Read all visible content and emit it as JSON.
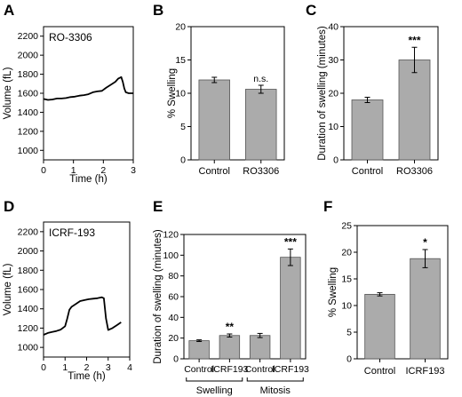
{
  "colors": {
    "bar": "#ababab",
    "bar_stroke": "#555555",
    "line": "#000000"
  },
  "chart_data": [
    {
      "id": "A",
      "panel_letter": "A",
      "type": "line",
      "inset_label": "RO-3306",
      "xlabel": "Time (h)",
      "ylabel": "Volume (fL)",
      "xlim": [
        0,
        3
      ],
      "ylim": [
        900,
        2300
      ],
      "xticks": [
        0,
        1,
        2,
        3
      ],
      "yticks": [
        1000,
        1200,
        1400,
        1600,
        1800,
        2000,
        2200
      ],
      "series": [
        {
          "x": [
            0,
            0.15,
            0.3,
            0.45,
            0.6,
            0.75,
            0.9,
            1.05,
            1.2,
            1.35,
            1.5,
            1.65,
            1.8,
            1.95,
            2.1,
            2.25,
            2.4,
            2.5,
            2.6,
            2.65,
            2.7,
            2.75,
            2.85,
            3.0
          ],
          "y": [
            1540,
            1530,
            1535,
            1545,
            1545,
            1550,
            1560,
            1565,
            1575,
            1580,
            1590,
            1610,
            1620,
            1625,
            1660,
            1690,
            1720,
            1755,
            1770,
            1720,
            1650,
            1610,
            1600,
            1600
          ]
        }
      ]
    },
    {
      "id": "B",
      "panel_letter": "B",
      "type": "bar",
      "ylabel": "% Swelling",
      "ylim": [
        0,
        20
      ],
      "yticks": [
        0,
        5,
        10,
        15,
        20
      ],
      "categories": [
        "Control",
        "RO3306"
      ],
      "values": [
        12.0,
        10.6
      ],
      "errors": [
        0.4,
        0.6
      ],
      "annotations": [
        "",
        "n.s."
      ]
    },
    {
      "id": "C",
      "panel_letter": "C",
      "type": "bar",
      "ylabel": "Duration of swelling (minutes)",
      "ylim": [
        0,
        40
      ],
      "yticks": [
        0,
        10,
        20,
        30,
        40
      ],
      "categories": [
        "Control",
        "RO3306"
      ],
      "values": [
        18.0,
        30.0
      ],
      "errors": [
        0.8,
        3.8
      ],
      "annotations": [
        "",
        "***"
      ]
    },
    {
      "id": "D",
      "panel_letter": "D",
      "type": "line",
      "inset_label": "ICRF-193",
      "xlabel": "Time (h)",
      "ylabel": "Volume (fL)",
      "xlim": [
        0,
        4
      ],
      "ylim": [
        900,
        2300
      ],
      "xticks": [
        0,
        1,
        2,
        3,
        4
      ],
      "yticks": [
        1000,
        1200,
        1400,
        1600,
        1800,
        2000,
        2200
      ],
      "series": [
        {
          "x": [
            0,
            0.2,
            0.4,
            0.6,
            0.8,
            1.0,
            1.1,
            1.2,
            1.3,
            1.5,
            1.7,
            1.9,
            2.1,
            2.3,
            2.5,
            2.7,
            2.8,
            2.9,
            3.0,
            3.2,
            3.4,
            3.6
          ],
          "y": [
            1130,
            1150,
            1160,
            1170,
            1185,
            1220,
            1300,
            1390,
            1420,
            1450,
            1480,
            1490,
            1500,
            1505,
            1510,
            1520,
            1510,
            1300,
            1180,
            1200,
            1230,
            1260
          ]
        }
      ]
    },
    {
      "id": "E",
      "panel_letter": "E",
      "type": "bar",
      "ylabel": "Duration of swelling (minutes)",
      "ylim": [
        0,
        120
      ],
      "yticks": [
        0,
        20,
        40,
        60,
        80,
        100,
        120
      ],
      "categories": [
        "Control",
        "ICRF193",
        "Control",
        "ICRF193"
      ],
      "values": [
        17.5,
        22.5,
        22.5,
        98.0
      ],
      "errors": [
        0.8,
        1.5,
        2.0,
        8.0
      ],
      "annotations": [
        "",
        "**",
        "",
        "***"
      ],
      "groups": [
        {
          "label": "Swelling",
          "members": [
            0,
            1
          ]
        },
        {
          "label": "Mitosis",
          "members": [
            2,
            3
          ]
        }
      ]
    },
    {
      "id": "F",
      "panel_letter": "F",
      "type": "bar",
      "ylabel": "% Swelling",
      "ylim": [
        0,
        25
      ],
      "yticks": [
        0,
        5,
        10,
        15,
        20,
        25
      ],
      "categories": [
        "Control",
        "ICRF193"
      ],
      "values": [
        12.1,
        18.8
      ],
      "errors": [
        0.3,
        1.7
      ],
      "annotations": [
        "",
        "*"
      ]
    }
  ]
}
